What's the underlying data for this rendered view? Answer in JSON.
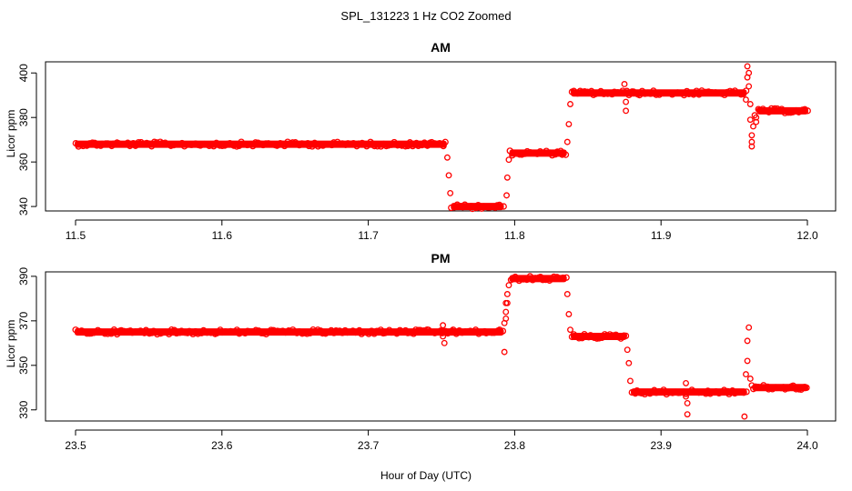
{
  "figure": {
    "title": "SPL_131223 1 Hz CO2 Zoomed",
    "xlabel": "Hour of Day (UTC)"
  },
  "chart_data": [
    {
      "type": "scatter",
      "title": "AM",
      "ylabel": "Licor ppm",
      "xlim": [
        11.5,
        12.0
      ],
      "ylim": [
        338,
        405
      ],
      "xticks": [
        "11.5",
        "11.6",
        "11.7",
        "11.8",
        "11.9",
        "12.0"
      ],
      "yticks": [
        "340",
        "360",
        "380",
        "400"
      ],
      "color": "#ff0000",
      "bands": [
        {
          "x": [
            11.5,
            11.753
          ],
          "y": 368
        },
        {
          "x": [
            11.757,
            11.792
          ],
          "y": 340
        },
        {
          "x": [
            11.797,
            11.835
          ],
          "y": 364
        },
        {
          "x": [
            11.839,
            11.958
          ],
          "y": 391
        },
        {
          "x": [
            11.966,
            12.0
          ],
          "y": 383
        }
      ],
      "points": [
        {
          "x": 11.754,
          "y": 362
        },
        {
          "x": 11.755,
          "y": 354
        },
        {
          "x": 11.756,
          "y": 346
        },
        {
          "x": 11.7945,
          "y": 345
        },
        {
          "x": 11.795,
          "y": 353
        },
        {
          "x": 11.796,
          "y": 361
        },
        {
          "x": 11.836,
          "y": 369
        },
        {
          "x": 11.837,
          "y": 377
        },
        {
          "x": 11.838,
          "y": 386
        },
        {
          "x": 11.875,
          "y": 395
        },
        {
          "x": 11.876,
          "y": 387
        },
        {
          "x": 11.876,
          "y": 383
        },
        {
          "x": 11.958,
          "y": 388
        },
        {
          "x": 11.959,
          "y": 398
        },
        {
          "x": 11.959,
          "y": 403
        },
        {
          "x": 11.96,
          "y": 400
        },
        {
          "x": 11.96,
          "y": 394
        },
        {
          "x": 11.961,
          "y": 386
        },
        {
          "x": 11.961,
          "y": 379
        },
        {
          "x": 11.962,
          "y": 372
        },
        {
          "x": 11.962,
          "y": 369
        },
        {
          "x": 11.962,
          "y": 367
        },
        {
          "x": 11.963,
          "y": 376
        },
        {
          "x": 11.964,
          "y": 381
        },
        {
          "x": 11.965,
          "y": 380
        },
        {
          "x": 11.965,
          "y": 378
        }
      ]
    },
    {
      "type": "scatter",
      "title": "PM",
      "ylabel": "Licor ppm",
      "xlim": [
        23.5,
        24.0
      ],
      "ylim": [
        325,
        392
      ],
      "xticks": [
        "23.5",
        "23.6",
        "23.7",
        "23.8",
        "23.9",
        "24.0"
      ],
      "yticks": [
        "330",
        "350",
        "370",
        "390"
      ],
      "color": "#ff0000",
      "bands": [
        {
          "x": [
            23.5,
            23.792
          ],
          "y": 365
        },
        {
          "x": [
            23.797,
            23.835
          ],
          "y": 389
        },
        {
          "x": [
            23.839,
            23.876
          ],
          "y": 363
        },
        {
          "x": [
            23.88,
            23.958
          ],
          "y": 338
        },
        {
          "x": [
            23.963,
            24.0
          ],
          "y": 340
        }
      ],
      "points": [
        {
          "x": 23.751,
          "y": 368
        },
        {
          "x": 23.751,
          "y": 363
        },
        {
          "x": 23.752,
          "y": 360
        },
        {
          "x": 23.793,
          "y": 356
        },
        {
          "x": 23.793,
          "y": 369
        },
        {
          "x": 23.794,
          "y": 371
        },
        {
          "x": 23.794,
          "y": 374
        },
        {
          "x": 23.794,
          "y": 378
        },
        {
          "x": 23.795,
          "y": 378
        },
        {
          "x": 23.795,
          "y": 382
        },
        {
          "x": 23.796,
          "y": 386
        },
        {
          "x": 23.836,
          "y": 382
        },
        {
          "x": 23.837,
          "y": 373
        },
        {
          "x": 23.838,
          "y": 366
        },
        {
          "x": 23.877,
          "y": 357
        },
        {
          "x": 23.878,
          "y": 351
        },
        {
          "x": 23.879,
          "y": 343
        },
        {
          "x": 23.917,
          "y": 342
        },
        {
          "x": 23.917,
          "y": 336
        },
        {
          "x": 23.918,
          "y": 333
        },
        {
          "x": 23.918,
          "y": 328
        },
        {
          "x": 23.957,
          "y": 327
        },
        {
          "x": 23.958,
          "y": 346
        },
        {
          "x": 23.959,
          "y": 352
        },
        {
          "x": 23.959,
          "y": 361
        },
        {
          "x": 23.96,
          "y": 367
        },
        {
          "x": 23.961,
          "y": 344
        },
        {
          "x": 23.962,
          "y": 341
        }
      ]
    }
  ]
}
